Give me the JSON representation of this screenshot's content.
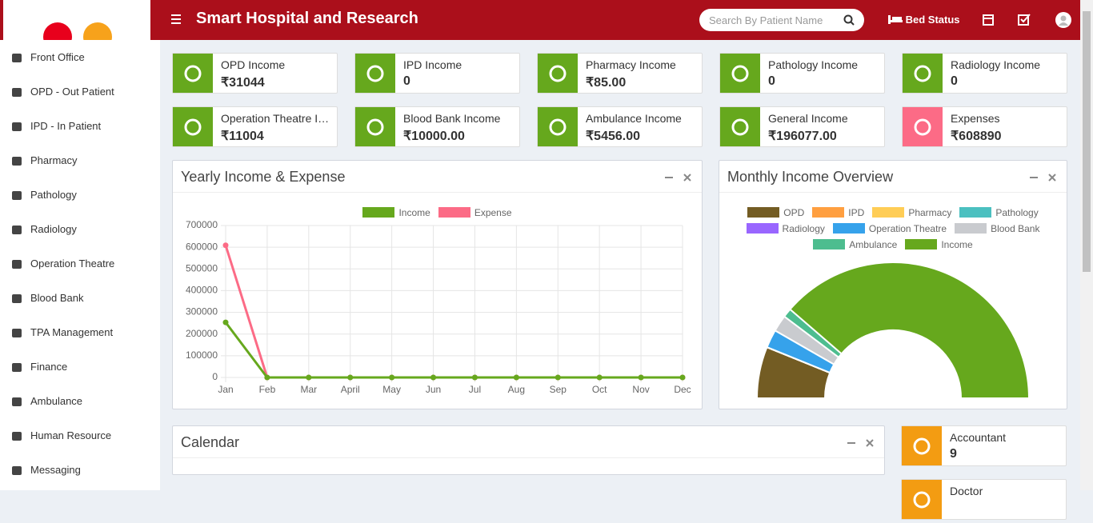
{
  "header": {
    "title": "Smart Hospital and Research",
    "search_placeholder": "Search By Patient Name",
    "bed_status": "Bed Status"
  },
  "sidebar": {
    "items": [
      "Front Office",
      "OPD - Out Patient",
      "IPD - In Patient",
      "Pharmacy",
      "Pathology",
      "Radiology",
      "Operation Theatre",
      "Blood Bank",
      "TPA Management",
      "Finance",
      "Ambulance",
      "Human Resource",
      "Messaging"
    ]
  },
  "income_cards": [
    {
      "label": "OPD Income",
      "value": "₹31044",
      "color": "#66a81d"
    },
    {
      "label": "IPD Income",
      "value": "0",
      "color": "#66a81d"
    },
    {
      "label": "Pharmacy Income",
      "value": "₹85.00",
      "color": "#66a81d"
    },
    {
      "label": "Pathology Income",
      "value": "0",
      "color": "#66a81d"
    },
    {
      "label": "Radiology Income",
      "value": "0",
      "color": "#66a81d"
    },
    {
      "label": "Operation Theatre Income",
      "value": "₹11004",
      "color": "#66a81d"
    },
    {
      "label": "Blood Bank Income",
      "value": "₹10000.00",
      "color": "#66a81d"
    },
    {
      "label": "Ambulance Income",
      "value": "₹5456.00",
      "color": "#66a81d"
    },
    {
      "label": "General Income",
      "value": "₹196077.00",
      "color": "#66a81d"
    },
    {
      "label": "Expenses",
      "value": "₹608890",
      "color": "#fc6b86"
    }
  ],
  "chart_data": [
    {
      "type": "line",
      "title": "Yearly Income & Expense",
      "categories": [
        "Jan",
        "Feb",
        "Mar",
        "April",
        "May",
        "Jun",
        "Jul",
        "Aug",
        "Sep",
        "Oct",
        "Nov",
        "Dec"
      ],
      "series": [
        {
          "name": "Income",
          "color": "#66a81d",
          "values": [
            253666,
            0,
            0,
            0,
            0,
            0,
            0,
            0,
            0,
            0,
            0,
            0
          ]
        },
        {
          "name": "Expense",
          "color": "#fc6b86",
          "values": [
            608890,
            0,
            0,
            0,
            0,
            0,
            0,
            0,
            0,
            0,
            0,
            0
          ]
        }
      ],
      "ylim": [
        0,
        700000
      ],
      "yticks": [
        0,
        100000,
        200000,
        300000,
        400000,
        500000,
        600000,
        700000
      ],
      "grid": true,
      "legend": "top"
    },
    {
      "type": "doughnut",
      "title": "Monthly Income Overview",
      "categories": [
        "OPD",
        "IPD",
        "Pharmacy",
        "Pathology",
        "Radiology",
        "Operation Theatre",
        "Blood Bank",
        "Ambulance",
        "Income"
      ],
      "values": [
        31044,
        0,
        85,
        0,
        0,
        11004,
        10000,
        5456,
        196077
      ],
      "colors": [
        "#735c23",
        "#ff9f40",
        "#ffcd56",
        "#4bc0c0",
        "#9966ff",
        "#36a2eb",
        "#c9cbcf",
        "#4dbd8f",
        "#66a81d"
      ],
      "legend": "top"
    }
  ],
  "calendar": {
    "title": "Calendar"
  },
  "staff_cards": [
    {
      "label": "Accountant",
      "value": 9,
      "color": "#f39c12"
    },
    {
      "label": "Doctor",
      "color": "#f39c12"
    }
  ]
}
